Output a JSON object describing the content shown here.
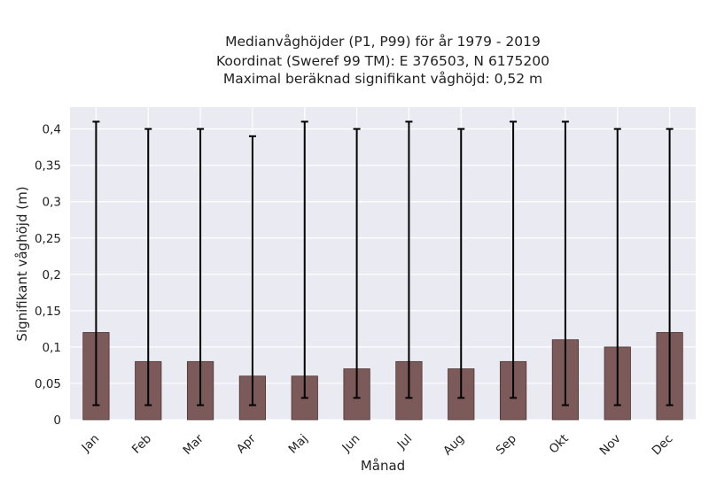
{
  "chart_data": {
    "type": "bar",
    "title_lines": [
      "Medianvåghöjder (P1, P99) för år 1979 - 2019",
      "Koordinat (Sweref 99 TM): E 376503, N 6175200",
      "Maximal beräknad signifikant våghöjd: 0,52 m"
    ],
    "xlabel": "Månad",
    "ylabel": "Signifikant våghöjd (m)",
    "categories": [
      "Jan",
      "Feb",
      "Mar",
      "Apr",
      "Maj",
      "Jun",
      "Jul",
      "Aug",
      "Sep",
      "Okt",
      "Nov",
      "Dec"
    ],
    "series": [
      {
        "values": [
          0.12,
          0.08,
          0.08,
          0.06,
          0.06,
          0.07,
          0.08,
          0.07,
          0.08,
          0.11,
          0.1,
          0.12
        ],
        "p1": [
          0.02,
          0.02,
          0.02,
          0.02,
          0.03,
          0.03,
          0.03,
          0.03,
          0.03,
          0.02,
          0.02,
          0.02
        ],
        "p99": [
          0.41,
          0.4,
          0.4,
          0.39,
          0.41,
          0.4,
          0.41,
          0.4,
          0.41,
          0.41,
          0.4,
          0.4
        ]
      }
    ],
    "yticks": [
      0,
      0.05,
      0.1,
      0.15,
      0.2,
      0.25,
      0.3,
      0.35,
      0.4
    ],
    "ytick_labels": [
      "0",
      "0,05",
      "0,1",
      "0,15",
      "0,2",
      "0,25",
      "0,3",
      "0,35",
      "0,4"
    ],
    "ylim": [
      0,
      0.43
    ],
    "grid": true,
    "colors": {
      "bar": "#7d5a5a",
      "bar_edge": "#4a3434",
      "error_bar": "#000000",
      "plot_background": "#eaeaf2",
      "grid": "#ffffff"
    }
  }
}
